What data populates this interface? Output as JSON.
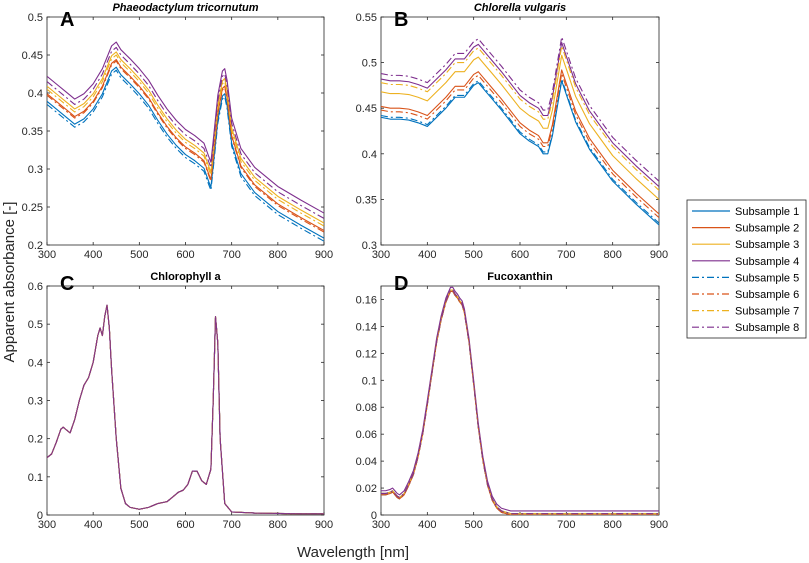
{
  "figure": {
    "xlabel": "Wavelength [nm]",
    "ylabel": "Apparent absorbance [-]"
  },
  "legend": {
    "placement": "right",
    "entries": [
      "Subsample 1",
      "Subsample 2",
      "Subsample 3",
      "Subsample 4",
      "Subsample 5",
      "Subsample 6",
      "Subsample 7",
      "Subsample 8"
    ],
    "colors": [
      "#0072BD",
      "#D95319",
      "#EDB120",
      "#7E2F8E",
      "#0072BD",
      "#D95319",
      "#EDB120",
      "#7E2F8E"
    ],
    "styles": [
      "solid",
      "solid",
      "solid",
      "solid",
      "dashdot",
      "dashdot",
      "dashdot",
      "dashdot"
    ]
  },
  "chart_data": [
    {
      "type": "line",
      "letter": "A",
      "title": "Phaeodactylum tricornutum",
      "title_italic": true,
      "xlim": [
        300,
        900
      ],
      "ylim": [
        0.2,
        0.5
      ],
      "xticks": [
        300,
        400,
        500,
        600,
        700,
        800,
        900
      ],
      "yticks": [
        0.2,
        0.25,
        0.3,
        0.35,
        0.4,
        0.45,
        0.5
      ],
      "ytick_labels": [
        "0.2",
        "0.25",
        "0.3",
        "0.35",
        "0.4",
        "0.45",
        "0.5"
      ],
      "x": [
        300,
        320,
        340,
        360,
        380,
        400,
        420,
        440,
        450,
        460,
        480,
        500,
        520,
        540,
        560,
        580,
        600,
        620,
        640,
        650,
        655,
        660,
        670,
        680,
        685,
        690,
        700,
        720,
        750,
        800,
        850,
        900
      ],
      "base": [
        0.385,
        0.375,
        0.365,
        0.355,
        0.362,
        0.375,
        0.395,
        0.425,
        0.43,
        0.42,
        0.408,
        0.395,
        0.38,
        0.36,
        0.342,
        0.327,
        0.315,
        0.307,
        0.297,
        0.28,
        0.272,
        0.3,
        0.36,
        0.392,
        0.395,
        0.38,
        0.33,
        0.29,
        0.265,
        0.24,
        0.222,
        0.205
      ],
      "offsets": [
        0.004,
        0.014,
        0.024,
        0.037,
        0.0,
        0.012,
        0.02,
        0.03
      ],
      "series": [
        {
          "name": "Subsample 1",
          "offset": 0.004
        },
        {
          "name": "Subsample 2",
          "offset": 0.014
        },
        {
          "name": "Subsample 3",
          "offset": 0.024
        },
        {
          "name": "Subsample 4",
          "offset": 0.037
        },
        {
          "name": "Subsample 5",
          "offset": 0.0
        },
        {
          "name": "Subsample 6",
          "offset": 0.012
        },
        {
          "name": "Subsample 7",
          "offset": 0.02
        },
        {
          "name": "Subsample 8",
          "offset": 0.03
        }
      ]
    },
    {
      "type": "line",
      "letter": "B",
      "title": "Chlorella vulgaris",
      "title_italic": true,
      "xlim": [
        300,
        900
      ],
      "ylim": [
        0.3,
        0.55
      ],
      "xticks": [
        300,
        400,
        500,
        600,
        700,
        800,
        900
      ],
      "yticks": [
        0.3,
        0.35,
        0.4,
        0.45,
        0.5,
        0.55
      ],
      "ytick_labels": [
        "0.3",
        "0.35",
        "0.4",
        "0.45",
        "0.5",
        "0.55"
      ],
      "x": [
        300,
        320,
        340,
        360,
        380,
        400,
        420,
        440,
        460,
        480,
        500,
        510,
        520,
        540,
        560,
        580,
        600,
        620,
        640,
        650,
        660,
        670,
        680,
        690,
        700,
        720,
        750,
        800,
        850,
        900
      ],
      "base": [
        0.44,
        0.438,
        0.438,
        0.437,
        0.434,
        0.43,
        0.44,
        0.45,
        0.462,
        0.462,
        0.475,
        0.478,
        0.472,
        0.46,
        0.448,
        0.435,
        0.422,
        0.414,
        0.408,
        0.4,
        0.4,
        0.42,
        0.45,
        0.48,
        0.465,
        0.435,
        0.405,
        0.37,
        0.345,
        0.322
      ],
      "offsets": [
        0.0,
        0.012,
        0.028,
        0.042,
        0.002,
        0.008,
        0.038,
        0.048
      ],
      "series": [
        {
          "name": "Subsample 1",
          "offset": 0.0
        },
        {
          "name": "Subsample 2",
          "offset": 0.012
        },
        {
          "name": "Subsample 3",
          "offset": 0.028
        },
        {
          "name": "Subsample 4",
          "offset": 0.042
        },
        {
          "name": "Subsample 5",
          "offset": 0.002
        },
        {
          "name": "Subsample 6",
          "offset": 0.008
        },
        {
          "name": "Subsample 7",
          "offset": 0.038
        },
        {
          "name": "Subsample 8",
          "offset": 0.048
        }
      ]
    },
    {
      "type": "line",
      "letter": "C",
      "title": "Chlorophyll a",
      "title_italic": false,
      "xlim": [
        300,
        900
      ],
      "ylim": [
        0,
        0.6
      ],
      "xticks": [
        300,
        400,
        500,
        600,
        700,
        800,
        900
      ],
      "yticks": [
        0,
        0.1,
        0.2,
        0.3,
        0.4,
        0.5,
        0.6
      ],
      "ytick_labels": [
        "0",
        "0.1",
        "0.2",
        "0.3",
        "0.4",
        "0.5",
        "0.6"
      ],
      "x": [
        300,
        310,
        320,
        330,
        335,
        340,
        350,
        360,
        370,
        380,
        390,
        400,
        410,
        415,
        420,
        425,
        430,
        435,
        440,
        450,
        460,
        470,
        480,
        500,
        520,
        540,
        560,
        575,
        585,
        595,
        605,
        615,
        625,
        635,
        645,
        655,
        660,
        665,
        670,
        675,
        685,
        700,
        750,
        800,
        850,
        900
      ],
      "base": [
        0.15,
        0.16,
        0.19,
        0.225,
        0.23,
        0.225,
        0.215,
        0.25,
        0.3,
        0.34,
        0.36,
        0.4,
        0.47,
        0.49,
        0.47,
        0.52,
        0.55,
        0.49,
        0.38,
        0.2,
        0.07,
        0.03,
        0.02,
        0.015,
        0.02,
        0.03,
        0.035,
        0.05,
        0.06,
        0.065,
        0.08,
        0.115,
        0.115,
        0.09,
        0.08,
        0.12,
        0.3,
        0.52,
        0.45,
        0.2,
        0.03,
        0.008,
        0.005,
        0.004,
        0.003,
        0.003
      ],
      "offsets": [
        0,
        0,
        0,
        0,
        0,
        0,
        0,
        0
      ],
      "series": [
        {
          "name": "Subsample 1",
          "offset": 0
        },
        {
          "name": "Subsample 2",
          "offset": 0
        },
        {
          "name": "Subsample 3",
          "offset": 0
        },
        {
          "name": "Subsample 4",
          "offset": 0
        },
        {
          "name": "Subsample 5",
          "offset": 0
        },
        {
          "name": "Subsample 6",
          "offset": 0
        },
        {
          "name": "Subsample 7",
          "offset": 0
        },
        {
          "name": "Subsample 8",
          "offset": 0
        }
      ]
    },
    {
      "type": "line",
      "letter": "D",
      "title": "Fucoxanthin",
      "title_italic": false,
      "xlim": [
        300,
        900
      ],
      "ylim": [
        0,
        0.17
      ],
      "xticks": [
        300,
        400,
        500,
        600,
        700,
        800,
        900
      ],
      "yticks": [
        0,
        0.02,
        0.04,
        0.06,
        0.08,
        0.1,
        0.12,
        0.14,
        0.16
      ],
      "ytick_labels": [
        "0",
        "0.02",
        "0.04",
        "0.06",
        "0.08",
        "0.1",
        "0.12",
        "0.14",
        "0.16"
      ],
      "x": [
        300,
        310,
        320,
        325,
        330,
        335,
        340,
        350,
        360,
        370,
        380,
        390,
        400,
        410,
        420,
        430,
        440,
        450,
        455,
        460,
        465,
        470,
        475,
        480,
        490,
        500,
        510,
        520,
        530,
        540,
        550,
        560,
        570,
        580,
        600,
        650,
        700,
        800,
        900
      ],
      "base": [
        0.015,
        0.015,
        0.016,
        0.017,
        0.015,
        0.013,
        0.012,
        0.015,
        0.022,
        0.03,
        0.043,
        0.06,
        0.082,
        0.105,
        0.128,
        0.145,
        0.158,
        0.166,
        0.166,
        0.163,
        0.161,
        0.158,
        0.156,
        0.15,
        0.128,
        0.097,
        0.065,
        0.04,
        0.022,
        0.011,
        0.005,
        0.002,
        0.001,
        0.0,
        0.0,
        0.0,
        0.0,
        0.0,
        0.0
      ],
      "offsets": [
        0.001,
        0.0,
        0.001,
        0.003,
        0.0,
        0.0,
        0.001,
        0.001
      ],
      "series": [
        {
          "name": "Subsample 1",
          "offset": 0.001
        },
        {
          "name": "Subsample 2",
          "offset": 0.0
        },
        {
          "name": "Subsample 3",
          "offset": 0.001
        },
        {
          "name": "Subsample 4",
          "offset": 0.003
        },
        {
          "name": "Subsample 5",
          "offset": 0.0
        },
        {
          "name": "Subsample 6",
          "offset": 0.0
        },
        {
          "name": "Subsample 7",
          "offset": 0.001
        },
        {
          "name": "Subsample 8",
          "offset": 0.001
        }
      ]
    }
  ]
}
